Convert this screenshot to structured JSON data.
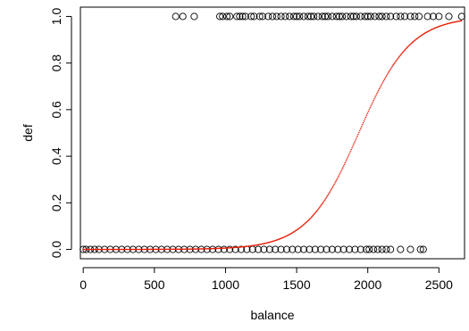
{
  "chart_data": {
    "type": "scatter",
    "title": "",
    "xlabel": "balance",
    "ylabel": "def",
    "xlim": [
      -20,
      2680
    ],
    "ylim": [
      -0.04,
      1.04
    ],
    "xticks": [
      0,
      500,
      1000,
      1500,
      2000,
      2500
    ],
    "xtick_labels": [
      "0",
      "500",
      "1000",
      "1500",
      "2000",
      "2500"
    ],
    "yticks": [
      0.0,
      0.2,
      0.4,
      0.6,
      0.8,
      1.0
    ],
    "ytick_labels": [
      "0.0",
      "0.2",
      "0.4",
      "0.6",
      "0.8",
      "1.0"
    ],
    "grid": false,
    "legend": "none",
    "point_color": "#000000",
    "fit_color": "#e8200c",
    "series": [
      {
        "marker": "open-circle",
        "y": 1,
        "x": [
          650,
          700,
          780,
          960,
          980,
          1010,
          1030,
          1080,
          1100,
          1120,
          1140,
          1180,
          1200,
          1240,
          1260,
          1300,
          1330,
          1360,
          1390,
          1420,
          1450,
          1480,
          1500,
          1520,
          1550,
          1580,
          1600,
          1620,
          1650,
          1680,
          1700,
          1720,
          1750,
          1780,
          1800,
          1820,
          1850,
          1880,
          1900,
          1920,
          1950,
          1980,
          2000,
          2020,
          2050,
          2080,
          2100,
          2130,
          2160,
          2200,
          2230,
          2260,
          2300,
          2330,
          2360,
          2420,
          2460,
          2500,
          2570,
          2660
        ]
      },
      {
        "marker": "open-circle",
        "y": 0,
        "x": [
          0,
          20,
          50,
          80,
          110,
          150,
          190,
          230,
          270,
          310,
          350,
          390,
          430,
          470,
          510,
          550,
          590,
          630,
          670,
          710,
          750,
          790,
          830,
          870,
          910,
          950,
          990,
          1030,
          1070,
          1110,
          1150,
          1190,
          1230,
          1270,
          1310,
          1350,
          1390,
          1430,
          1470,
          1510,
          1550,
          1590,
          1630,
          1670,
          1710,
          1750,
          1790,
          1830,
          1870,
          1910,
          1950,
          1990,
          2010,
          2040,
          2070,
          2100,
          2130,
          2160,
          2230,
          2300,
          2370,
          2390
        ]
      },
      {
        "type": "line",
        "style": "logistic-fit",
        "intercept": -10.65,
        "slope": 0.0055
      }
    ]
  }
}
